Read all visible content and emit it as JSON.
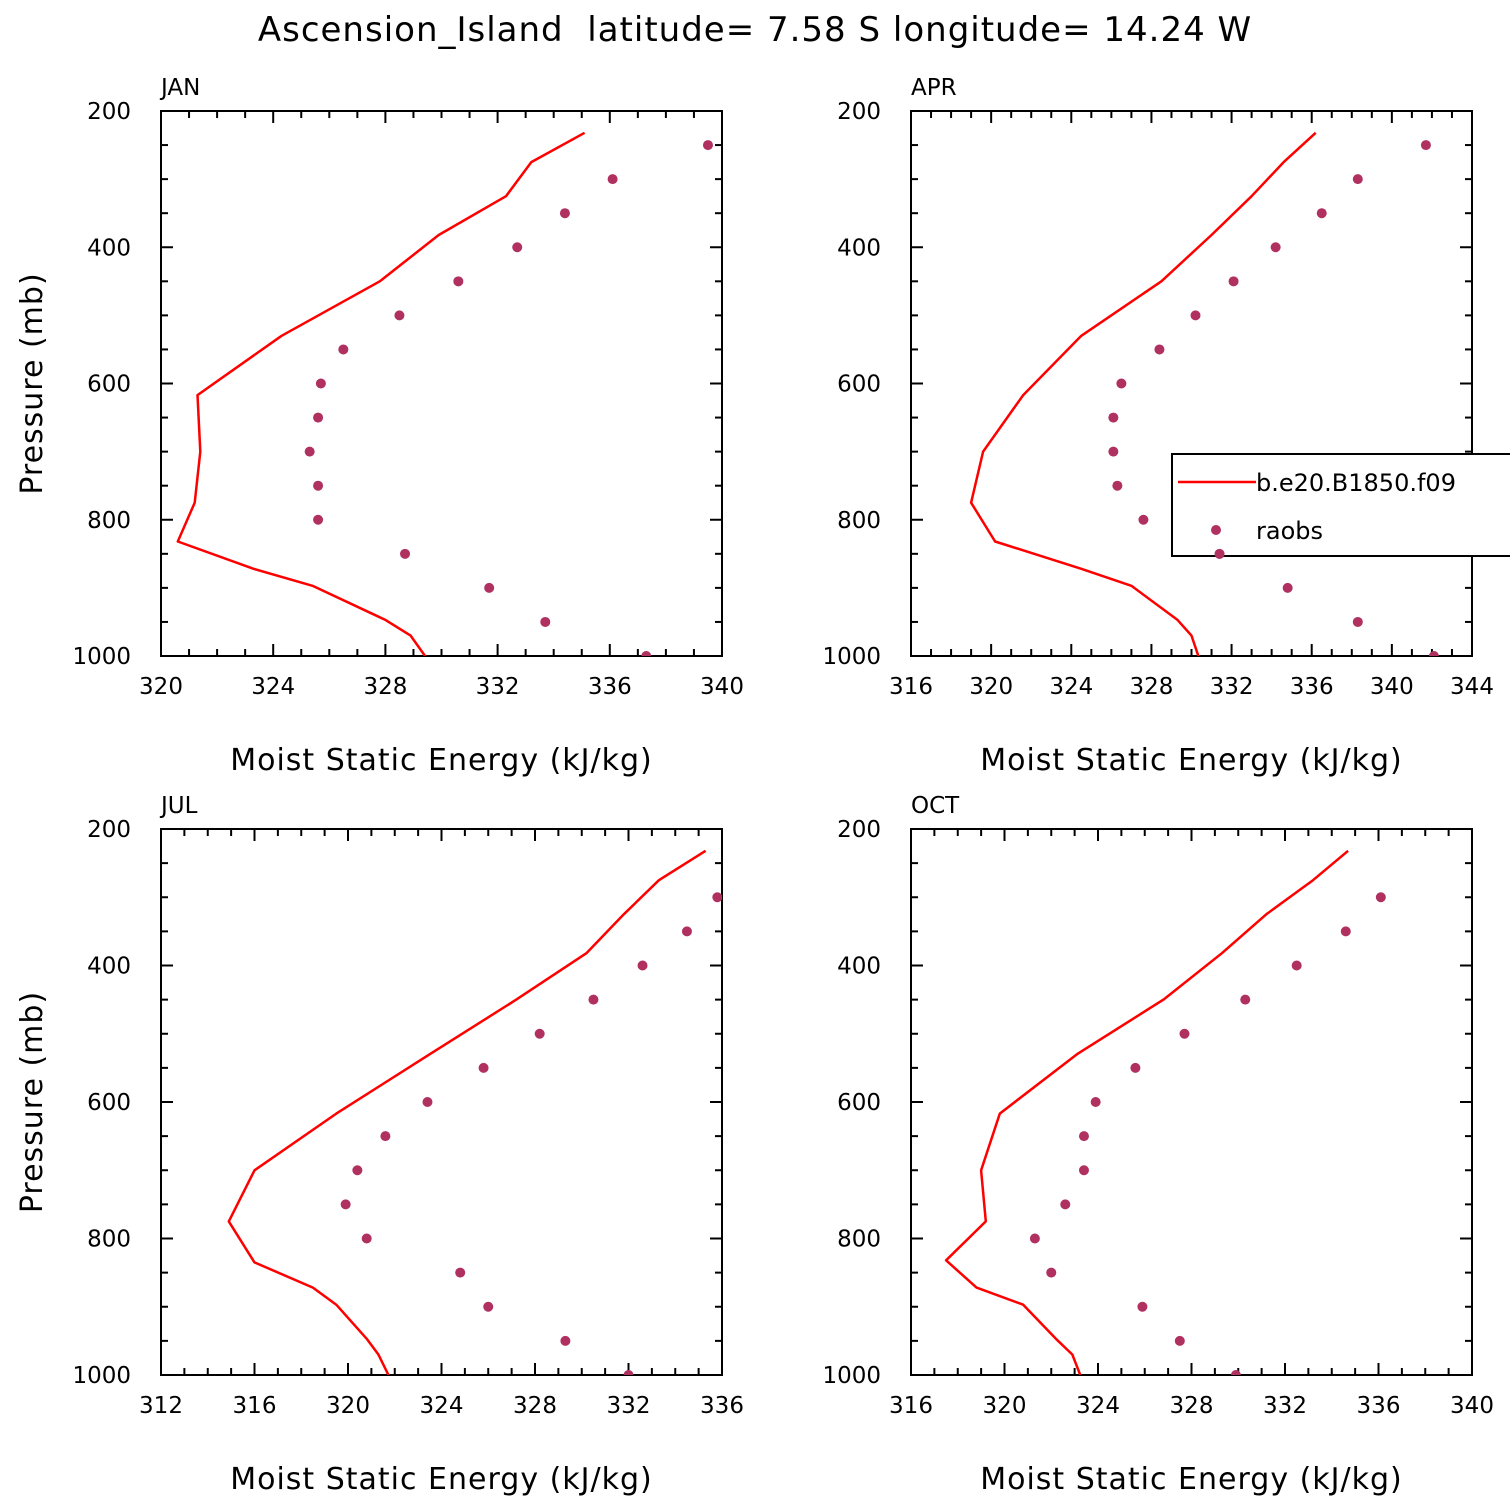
{
  "title": "Ascension_Island  latitude= 7.58 S longitude= 14.24 W",
  "colors": {
    "model_line": "#ff0000",
    "obs_marker": "#b03060",
    "frame": "#000000"
  },
  "legend": {
    "show_in_panel": 1,
    "entries": [
      {
        "label": "b.e20.B1850.f09",
        "style": "line",
        "color": "#ff0000"
      },
      {
        "label": "raobs",
        "style": "marker",
        "color": "#b03060"
      }
    ]
  },
  "chart_data": [
    {
      "type": "line",
      "label": "JAN",
      "xlabel": "Moist Static Energy (kJ/kg)",
      "ylabel": "Pressure (mb)",
      "xlim": [
        320,
        340
      ],
      "xticks": [
        320,
        324,
        328,
        332,
        336,
        340
      ],
      "ylim": [
        1000,
        200
      ],
      "yticks": [
        200,
        400,
        600,
        800,
        1000
      ],
      "series": [
        {
          "name": "b.e20.B1850.f09",
          "style": "line",
          "x": [
            335.1,
            333.2,
            332.3,
            329.9,
            327.8,
            324.3,
            321.3,
            321.4,
            321.2,
            320.6,
            323.3,
            325.4,
            328.0,
            328.9,
            329.5
          ],
          "y": [
            232,
            275,
            325,
            382,
            450,
            530,
            617,
            700,
            775,
            832,
            872,
            897,
            947,
            970,
            1005
          ]
        },
        {
          "name": "raobs",
          "style": "marker",
          "x": [
            339.5,
            336.1,
            334.4,
            332.7,
            330.6,
            328.5,
            326.5,
            325.7,
            325.6,
            325.3,
            325.6,
            325.6,
            328.7,
            331.7,
            333.7,
            337.3
          ],
          "y": [
            250,
            300,
            350,
            400,
            450,
            500,
            550,
            600,
            650,
            700,
            750,
            800,
            850,
            900,
            950,
            1000
          ]
        }
      ]
    },
    {
      "type": "line",
      "label": "APR",
      "xlabel": "Moist Static Energy (kJ/kg)",
      "ylabel": "",
      "xlim": [
        316,
        344
      ],
      "xticks": [
        316,
        320,
        324,
        328,
        332,
        336,
        340,
        344
      ],
      "ylim": [
        1000,
        200
      ],
      "yticks": [
        200,
        400,
        600,
        800,
        1000
      ],
      "series": [
        {
          "name": "b.e20.B1850.f09",
          "style": "line",
          "x": [
            336.2,
            334.6,
            333.0,
            331.0,
            328.5,
            324.5,
            321.6,
            319.6,
            319.0,
            320.2,
            324.5,
            327.0,
            329.3,
            330.0,
            330.4
          ],
          "y": [
            232,
            275,
            325,
            382,
            450,
            530,
            617,
            700,
            775,
            832,
            872,
            897,
            947,
            970,
            1005
          ]
        },
        {
          "name": "raobs",
          "style": "marker",
          "x": [
            341.7,
            338.3,
            336.5,
            334.2,
            332.1,
            330.2,
            328.4,
            326.5,
            326.1,
            326.1,
            326.3,
            327.6,
            331.4,
            334.8,
            338.3,
            342.1
          ],
          "y": [
            250,
            300,
            350,
            400,
            450,
            500,
            550,
            600,
            650,
            700,
            750,
            800,
            850,
            900,
            950,
            1000
          ]
        }
      ]
    },
    {
      "type": "line",
      "label": "JUL",
      "xlabel": "Moist Static Energy (kJ/kg)",
      "ylabel": "Pressure (mb)",
      "xlim": [
        312,
        336
      ],
      "xticks": [
        312,
        316,
        320,
        324,
        328,
        332,
        336
      ],
      "ylim": [
        1000,
        200
      ],
      "yticks": [
        200,
        400,
        600,
        800,
        1000
      ],
      "series": [
        {
          "name": "b.e20.B1850.f09",
          "style": "line",
          "x": [
            335.3,
            333.3,
            331.8,
            330.2,
            327.2,
            323.5,
            319.5,
            316.0,
            314.9,
            316.0,
            318.5,
            319.5,
            320.8,
            321.3,
            321.8
          ],
          "y": [
            232,
            275,
            325,
            382,
            450,
            530,
            617,
            700,
            775,
            835,
            872,
            897,
            947,
            970,
            1005
          ]
        },
        {
          "name": "raobs",
          "style": "marker",
          "x": [
            335.8,
            334.5,
            332.6,
            330.5,
            328.2,
            325.8,
            323.4,
            321.6,
            320.4,
            319.9,
            320.8,
            324.8,
            326.0,
            329.3,
            332.0
          ],
          "y": [
            300,
            350,
            400,
            450,
            500,
            550,
            600,
            650,
            700,
            750,
            800,
            850,
            900,
            950,
            1000
          ]
        }
      ]
    },
    {
      "type": "line",
      "label": "OCT",
      "xlabel": "Moist Static Energy (kJ/kg)",
      "ylabel": "",
      "xlim": [
        316,
        340
      ],
      "xticks": [
        316,
        320,
        324,
        328,
        332,
        336,
        340
      ],
      "ylim": [
        1000,
        200
      ],
      "yticks": [
        200,
        400,
        600,
        800,
        1000
      ],
      "series": [
        {
          "name": "b.e20.B1850.f09",
          "style": "line",
          "x": [
            334.7,
            333.2,
            331.2,
            329.3,
            326.8,
            323.1,
            319.8,
            319.0,
            319.2,
            317.5,
            318.8,
            320.8,
            322.2,
            322.9,
            323.3
          ],
          "y": [
            232,
            275,
            325,
            382,
            450,
            530,
            617,
            700,
            775,
            832,
            872,
            897,
            947,
            970,
            1005
          ]
        },
        {
          "name": "raobs",
          "style": "marker",
          "x": [
            336.1,
            334.6,
            332.5,
            330.3,
            327.7,
            325.6,
            323.9,
            323.4,
            323.4,
            322.6,
            321.3,
            322.0,
            325.9,
            327.5,
            329.9
          ],
          "y": [
            300,
            350,
            400,
            450,
            500,
            550,
            600,
            650,
            700,
            750,
            800,
            850,
            900,
            950,
            1000
          ]
        }
      ]
    }
  ]
}
